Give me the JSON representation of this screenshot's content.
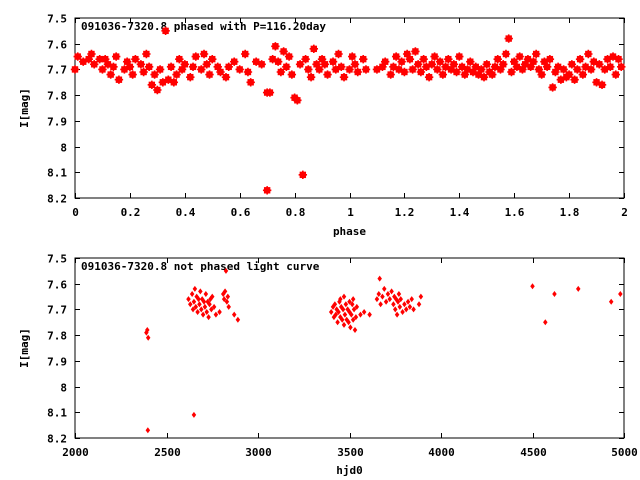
{
  "chart_data": [
    {
      "type": "scatter",
      "title": "091036-7320.8 phased with P=116.20day",
      "xlabel": "phase",
      "ylabel": "I[mag]",
      "xlim": [
        0,
        2
      ],
      "ylim": [
        7.5,
        8.2
      ],
      "y_inverted": true,
      "grid": false,
      "marker_color": "#ff0000",
      "xticks": [
        "0",
        "0.2",
        "0.4",
        "0.6",
        "0.8",
        "1",
        "1.2",
        "1.4",
        "1.6",
        "1.8",
        "2"
      ],
      "yticks": [
        "7.5",
        "7.6",
        "7.7",
        "7.8",
        "7.9",
        "8",
        "8.1",
        "8.2"
      ],
      "points": [
        [
          0.0,
          7.7
        ],
        [
          0.01,
          7.65
        ],
        [
          0.03,
          7.67
        ],
        [
          0.05,
          7.66
        ],
        [
          0.06,
          7.64
        ],
        [
          0.07,
          7.68
        ],
        [
          0.09,
          7.66
        ],
        [
          0.1,
          7.7
        ],
        [
          0.11,
          7.66
        ],
        [
          0.12,
          7.68
        ],
        [
          0.13,
          7.72
        ],
        [
          0.14,
          7.69
        ],
        [
          0.15,
          7.65
        ],
        [
          0.16,
          7.74
        ],
        [
          0.18,
          7.7
        ],
        [
          0.19,
          7.67
        ],
        [
          0.2,
          7.69
        ],
        [
          0.21,
          7.72
        ],
        [
          0.22,
          7.66
        ],
        [
          0.24,
          7.68
        ],
        [
          0.25,
          7.71
        ],
        [
          0.26,
          7.64
        ],
        [
          0.27,
          7.69
        ],
        [
          0.28,
          7.76
        ],
        [
          0.29,
          7.72
        ],
        [
          0.3,
          7.78
        ],
        [
          0.31,
          7.7
        ],
        [
          0.32,
          7.75
        ],
        [
          0.33,
          7.55
        ],
        [
          0.34,
          7.74
        ],
        [
          0.35,
          7.69
        ],
        [
          0.36,
          7.75
        ],
        [
          0.37,
          7.72
        ],
        [
          0.38,
          7.66
        ],
        [
          0.39,
          7.7
        ],
        [
          0.4,
          7.68
        ],
        [
          0.42,
          7.73
        ],
        [
          0.43,
          7.69
        ],
        [
          0.44,
          7.65
        ],
        [
          0.46,
          7.7
        ],
        [
          0.47,
          7.64
        ],
        [
          0.48,
          7.68
        ],
        [
          0.49,
          7.72
        ],
        [
          0.5,
          7.66
        ],
        [
          0.52,
          7.69
        ],
        [
          0.53,
          7.71
        ],
        [
          0.55,
          7.73
        ],
        [
          0.56,
          7.69
        ],
        [
          0.58,
          7.67
        ],
        [
          0.6,
          7.7
        ],
        [
          0.62,
          7.64
        ],
        [
          0.63,
          7.71
        ],
        [
          0.64,
          7.75
        ],
        [
          0.66,
          7.67
        ],
        [
          0.68,
          7.68
        ],
        [
          0.7,
          7.79
        ],
        [
          0.71,
          7.79
        ],
        [
          0.7,
          8.17
        ],
        [
          0.72,
          7.66
        ],
        [
          0.73,
          7.61
        ],
        [
          0.74,
          7.67
        ],
        [
          0.75,
          7.71
        ],
        [
          0.76,
          7.63
        ],
        [
          0.77,
          7.69
        ],
        [
          0.78,
          7.65
        ],
        [
          0.79,
          7.72
        ],
        [
          0.8,
          7.81
        ],
        [
          0.81,
          7.82
        ],
        [
          0.82,
          7.68
        ],
        [
          0.83,
          8.11
        ],
        [
          0.84,
          7.66
        ],
        [
          0.85,
          7.7
        ],
        [
          0.86,
          7.73
        ],
        [
          0.87,
          7.62
        ],
        [
          0.88,
          7.68
        ],
        [
          0.89,
          7.7
        ],
        [
          0.9,
          7.66
        ],
        [
          0.91,
          7.68
        ],
        [
          0.92,
          7.72
        ],
        [
          0.94,
          7.67
        ],
        [
          0.95,
          7.7
        ],
        [
          0.96,
          7.64
        ],
        [
          0.97,
          7.69
        ],
        [
          0.98,
          7.73
        ],
        [
          1.0,
          7.7
        ],
        [
          1.01,
          7.65
        ],
        [
          1.02,
          7.68
        ],
        [
          1.03,
          7.71
        ],
        [
          1.05,
          7.66
        ],
        [
          1.06,
          7.7
        ],
        [
          1.1,
          7.7
        ],
        [
          1.12,
          7.69
        ],
        [
          1.13,
          7.67
        ],
        [
          1.15,
          7.72
        ],
        [
          1.16,
          7.69
        ],
        [
          1.17,
          7.65
        ],
        [
          1.18,
          7.7
        ],
        [
          1.19,
          7.67
        ],
        [
          1.2,
          7.71
        ],
        [
          1.21,
          7.64
        ],
        [
          1.22,
          7.66
        ],
        [
          1.23,
          7.7
        ],
        [
          1.24,
          7.63
        ],
        [
          1.25,
          7.68
        ],
        [
          1.26,
          7.71
        ],
        [
          1.27,
          7.66
        ],
        [
          1.28,
          7.69
        ],
        [
          1.29,
          7.73
        ],
        [
          1.3,
          7.68
        ],
        [
          1.31,
          7.65
        ],
        [
          1.32,
          7.7
        ],
        [
          1.33,
          7.67
        ],
        [
          1.34,
          7.72
        ],
        [
          1.35,
          7.69
        ],
        [
          1.36,
          7.66
        ],
        [
          1.37,
          7.7
        ],
        [
          1.38,
          7.68
        ],
        [
          1.39,
          7.71
        ],
        [
          1.4,
          7.65
        ],
        [
          1.41,
          7.69
        ],
        [
          1.42,
          7.72
        ],
        [
          1.43,
          7.7
        ],
        [
          1.44,
          7.67
        ],
        [
          1.45,
          7.71
        ],
        [
          1.46,
          7.69
        ],
        [
          1.47,
          7.72
        ],
        [
          1.48,
          7.7
        ],
        [
          1.49,
          7.73
        ],
        [
          1.5,
          7.68
        ],
        [
          1.51,
          7.71
        ],
        [
          1.52,
          7.72
        ],
        [
          1.53,
          7.69
        ],
        [
          1.54,
          7.66
        ],
        [
          1.55,
          7.7
        ],
        [
          1.56,
          7.68
        ],
        [
          1.57,
          7.64
        ],
        [
          1.58,
          7.58
        ],
        [
          1.59,
          7.71
        ],
        [
          1.6,
          7.67
        ],
        [
          1.61,
          7.69
        ],
        [
          1.62,
          7.65
        ],
        [
          1.63,
          7.7
        ],
        [
          1.64,
          7.68
        ],
        [
          1.65,
          7.66
        ],
        [
          1.66,
          7.69
        ],
        [
          1.67,
          7.67
        ],
        [
          1.68,
          7.64
        ],
        [
          1.69,
          7.7
        ],
        [
          1.7,
          7.72
        ],
        [
          1.71,
          7.67
        ],
        [
          1.72,
          7.69
        ],
        [
          1.73,
          7.66
        ],
        [
          1.74,
          7.77
        ],
        [
          1.75,
          7.71
        ],
        [
          1.76,
          7.69
        ],
        [
          1.77,
          7.74
        ],
        [
          1.78,
          7.7
        ],
        [
          1.79,
          7.73
        ],
        [
          1.8,
          7.72
        ],
        [
          1.81,
          7.68
        ],
        [
          1.82,
          7.74
        ],
        [
          1.83,
          7.7
        ],
        [
          1.84,
          7.66
        ],
        [
          1.85,
          7.72
        ],
        [
          1.86,
          7.69
        ],
        [
          1.87,
          7.64
        ],
        [
          1.88,
          7.7
        ],
        [
          1.89,
          7.67
        ],
        [
          1.9,
          7.75
        ],
        [
          1.91,
          7.68
        ],
        [
          1.92,
          7.76
        ],
        [
          1.93,
          7.7
        ],
        [
          1.94,
          7.66
        ],
        [
          1.95,
          7.69
        ],
        [
          1.96,
          7.65
        ],
        [
          1.97,
          7.72
        ],
        [
          1.98,
          7.66
        ],
        [
          1.99,
          7.69
        ]
      ]
    },
    {
      "type": "scatter",
      "title": "091036-7320.8 not phased light curve",
      "xlabel": "hjd0",
      "ylabel": "I[mag]",
      "xlim": [
        2000,
        5000
      ],
      "ylim": [
        7.5,
        8.2
      ],
      "y_inverted": true,
      "grid": false,
      "marker_color": "#ff0000",
      "xticks": [
        "2000",
        "2500",
        "3000",
        "3500",
        "4000",
        "4500",
        "5000"
      ],
      "yticks": [
        "7.5",
        "7.6",
        "7.7",
        "7.8",
        "7.9",
        "8",
        "8.1",
        "8.2"
      ],
      "points": [
        [
          2390,
          7.79
        ],
        [
          2395,
          7.78
        ],
        [
          2400,
          7.81
        ],
        [
          2398,
          8.17
        ],
        [
          2650,
          8.11
        ],
        [
          2620,
          7.66
        ],
        [
          2630,
          7.68
        ],
        [
          2640,
          7.64
        ],
        [
          2645,
          7.7
        ],
        [
          2650,
          7.67
        ],
        [
          2655,
          7.62
        ],
        [
          2660,
          7.69
        ],
        [
          2665,
          7.65
        ],
        [
          2670,
          7.71
        ],
        [
          2675,
          7.66
        ],
        [
          2680,
          7.68
        ],
        [
          2685,
          7.63
        ],
        [
          2690,
          7.7
        ],
        [
          2695,
          7.66
        ],
        [
          2700,
          7.72
        ],
        [
          2705,
          7.67
        ],
        [
          2710,
          7.69
        ],
        [
          2715,
          7.64
        ],
        [
          2720,
          7.71
        ],
        [
          2725,
          7.67
        ],
        [
          2730,
          7.73
        ],
        [
          2735,
          7.68
        ],
        [
          2740,
          7.66
        ],
        [
          2745,
          7.7
        ],
        [
          2750,
          7.65
        ],
        [
          2760,
          7.69
        ],
        [
          2770,
          7.72
        ],
        [
          2790,
          7.71
        ],
        [
          2810,
          7.64
        ],
        [
          2815,
          7.66
        ],
        [
          2820,
          7.63
        ],
        [
          2825,
          7.55
        ],
        [
          2830,
          7.67
        ],
        [
          2835,
          7.65
        ],
        [
          2840,
          7.69
        ],
        [
          2870,
          7.72
        ],
        [
          2890,
          7.74
        ],
        [
          3400,
          7.71
        ],
        [
          3410,
          7.69
        ],
        [
          3415,
          7.73
        ],
        [
          3420,
          7.68
        ],
        [
          3425,
          7.72
        ],
        [
          3430,
          7.7
        ],
        [
          3435,
          7.75
        ],
        [
          3440,
          7.71
        ],
        [
          3445,
          7.67
        ],
        [
          3450,
          7.73
        ],
        [
          3455,
          7.69
        ],
        [
          3460,
          7.74
        ],
        [
          3465,
          7.7
        ],
        [
          3470,
          7.76
        ],
        [
          3475,
          7.72
        ],
        [
          3480,
          7.68
        ],
        [
          3485,
          7.74
        ],
        [
          3490,
          7.7
        ],
        [
          3495,
          7.75
        ],
        [
          3500,
          7.71
        ],
        [
          3505,
          7.77
        ],
        [
          3510,
          7.72
        ],
        [
          3515,
          7.68
        ],
        [
          3520,
          7.74
        ],
        [
          3525,
          7.7
        ],
        [
          3530,
          7.78
        ],
        [
          3535,
          7.73
        ],
        [
          3540,
          7.69
        ],
        [
          3450,
          7.66
        ],
        [
          3470,
          7.65
        ],
        [
          3500,
          7.67
        ],
        [
          3520,
          7.66
        ],
        [
          3560,
          7.72
        ],
        [
          3580,
          7.71
        ],
        [
          3610,
          7.72
        ],
        [
          3650,
          7.66
        ],
        [
          3660,
          7.64
        ],
        [
          3665,
          7.58
        ],
        [
          3670,
          7.68
        ],
        [
          3680,
          7.65
        ],
        [
          3690,
          7.62
        ],
        [
          3700,
          7.67
        ],
        [
          3710,
          7.64
        ],
        [
          3720,
          7.66
        ],
        [
          3730,
          7.63
        ],
        [
          3740,
          7.68
        ],
        [
          3745,
          7.65
        ],
        [
          3750,
          7.7
        ],
        [
          3755,
          7.66
        ],
        [
          3760,
          7.72
        ],
        [
          3765,
          7.67
        ],
        [
          3770,
          7.64
        ],
        [
          3775,
          7.69
        ],
        [
          3780,
          7.66
        ],
        [
          3790,
          7.71
        ],
        [
          3800,
          7.68
        ],
        [
          3810,
          7.7
        ],
        [
          3820,
          7.67
        ],
        [
          3830,
          7.69
        ],
        [
          3840,
          7.66
        ],
        [
          3850,
          7.7
        ],
        [
          3880,
          7.68
        ],
        [
          3890,
          7.65
        ],
        [
          4500,
          7.61
        ],
        [
          4570,
          7.75
        ],
        [
          4620,
          7.64
        ],
        [
          4750,
          7.62
        ],
        [
          4930,
          7.67
        ],
        [
          4980,
          7.64
        ]
      ]
    }
  ]
}
